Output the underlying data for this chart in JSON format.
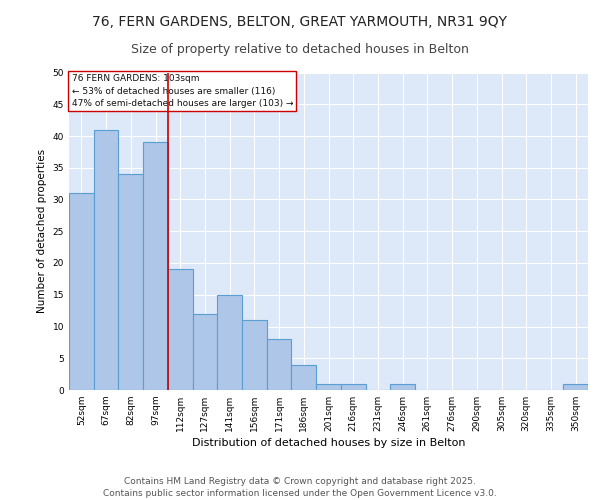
{
  "title_line1": "76, FERN GARDENS, BELTON, GREAT YARMOUTH, NR31 9QY",
  "title_line2": "Size of property relative to detached houses in Belton",
  "xlabel": "Distribution of detached houses by size in Belton",
  "ylabel": "Number of detached properties",
  "categories": [
    "52sqm",
    "67sqm",
    "82sqm",
    "97sqm",
    "112sqm",
    "127sqm",
    "141sqm",
    "156sqm",
    "171sqm",
    "186sqm",
    "201sqm",
    "216sqm",
    "231sqm",
    "246sqm",
    "261sqm",
    "276sqm",
    "290sqm",
    "305sqm",
    "320sqm",
    "335sqm",
    "350sqm"
  ],
  "values": [
    31,
    41,
    34,
    39,
    19,
    12,
    15,
    11,
    8,
    4,
    1,
    1,
    0,
    1,
    0,
    0,
    0,
    0,
    0,
    0,
    1
  ],
  "bar_color": "#aec6e8",
  "bar_edge_color": "#5a9fd4",
  "bar_linewidth": 0.8,
  "bg_color": "#dde8f8",
  "grid_color": "#ffffff",
  "red_line_x": 3.5,
  "red_line_color": "#cc0000",
  "annotation_text": "76 FERN GARDENS: 103sqm\n← 53% of detached houses are smaller (116)\n47% of semi-detached houses are larger (103) →",
  "annotation_box_color": "#ffffff",
  "annotation_box_edge": "#cc0000",
  "ylim": [
    0,
    50
  ],
  "yticks": [
    0,
    5,
    10,
    15,
    20,
    25,
    30,
    35,
    40,
    45,
    50
  ],
  "footer": "Contains HM Land Registry data © Crown copyright and database right 2025.\nContains public sector information licensed under the Open Government Licence v3.0.",
  "title_fontsize": 10,
  "subtitle_fontsize": 9,
  "annotation_fontsize": 6.5,
  "footer_fontsize": 6.5,
  "ylabel_fontsize": 7.5,
  "xlabel_fontsize": 8,
  "tick_fontsize": 6.5
}
